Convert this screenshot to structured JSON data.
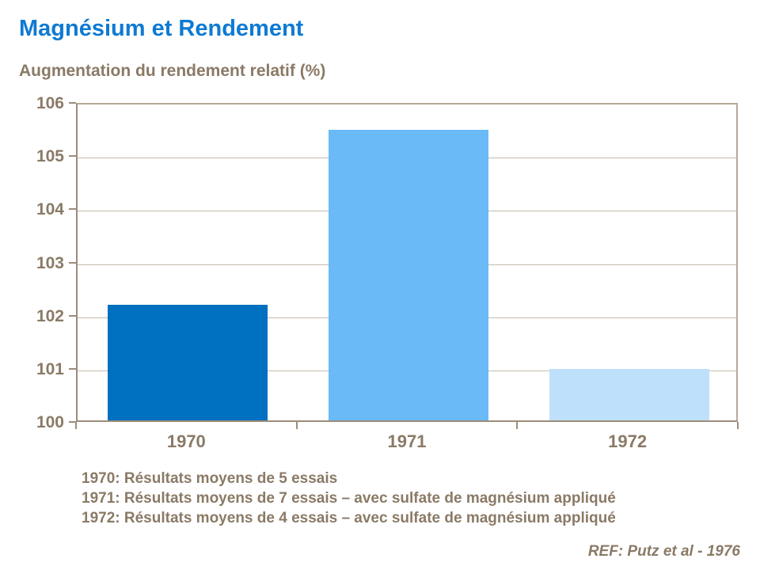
{
  "header": {
    "title": "Magnésium et Rendement",
    "subtitle": "Augmentation du rendement relatif (%)"
  },
  "chart_data": {
    "type": "bar",
    "title": "Magnésium et Rendement",
    "ylabel": "Augmentation du rendement relatif (%)",
    "categories": [
      "1970",
      "1971",
      "1972"
    ],
    "values": [
      102.2,
      105.5,
      101.0
    ],
    "bar_colors": [
      "#0070C0",
      "#69BAF7",
      "#BFE0FA"
    ],
    "ylim": [
      100,
      106
    ],
    "ytick_step": 1,
    "ytick_labels": [
      "100",
      "101",
      "102",
      "103",
      "104",
      "105",
      "106"
    ],
    "grid": true,
    "legend_position": "none"
  },
  "notes": {
    "lines": [
      "1970: Résultats moyens de 5 essais",
      "1971: Résultats moyens de 7 essais – avec sulfate de magnésium appliqué",
      "1972: Résultats moyens de 4 essais – avec sulfate de magnésium appliqué"
    ]
  },
  "footer": {
    "ref": "REF: Putz et al - 1976"
  },
  "colors": {
    "title_blue": "#0E7AD3",
    "text_brown": "#8A7A66",
    "gridline": "#C6BBAA",
    "axis": "#9C8D7A",
    "plot_border": "#B5A997"
  }
}
